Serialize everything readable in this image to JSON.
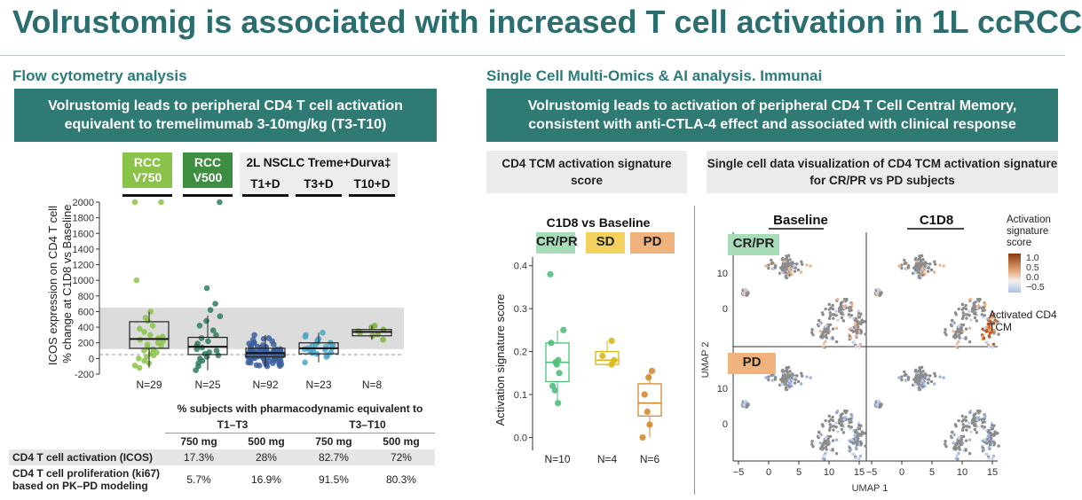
{
  "title": "Volrustomig is associated with increased T cell activation in 1L ccRCC",
  "left": {
    "section_title": "Flow cytometry analysis",
    "banner": "Volrustomig leads to peripheral CD4 T cell activation equivalent to tremelimumab 3-10mg/kg (T3-T10)",
    "groups": [
      {
        "label": "RCC V750",
        "color": "#8bc34a"
      },
      {
        "label": "RCC V500",
        "color": "#3e8e41"
      }
    ],
    "nsclc_header": "2L NSCLC Treme+Durva‡",
    "nsclc_groups": [
      "T1+D",
      "T3+D",
      "T10+D"
    ],
    "table": {
      "title": "% subjects with pharmacodynamic equivalent to",
      "spans": [
        "T1–T3",
        "T3–T10"
      ],
      "doses": [
        "750 mg",
        "500 mg",
        "750 mg",
        "500 mg"
      ],
      "rows": [
        {
          "label": "CD4 T cell activation (ICOS)",
          "values": [
            "17.3%",
            "28%",
            "82.7%",
            "72%"
          ]
        },
        {
          "label": "CD4 T cell proliferation (ki67) based on PK–PD modeling",
          "values": [
            "5.7%",
            "16.9%",
            "91.5%",
            "80.3%"
          ]
        }
      ]
    }
  },
  "right": {
    "section_title": "Single Cell Multi-Omics & AI analysis. Immunai",
    "banner": "Volrustomig leads to activation of peripheral CD4 T Cell Central Memory, consistent with anti-CTLA-4 effect and associated with clinical response",
    "box_a": "CD4 TCM activation signature score",
    "box_b": "Single cell data visualization of CD4 TCM activation signature for CR/PR vs PD subjects",
    "pills": [
      {
        "label": "CR/PR",
        "color": "#a6dcb8"
      },
      {
        "label": "SD",
        "color": "#f2d15c"
      },
      {
        "label": "PD",
        "color": "#f1b37d"
      }
    ],
    "umap": {
      "col_titles": [
        "Baseline",
        "C1D8"
      ],
      "row_labels": [
        "CR/PR",
        "PD"
      ],
      "xlabel": "UMAP 1",
      "ylabel": "UMAP 2",
      "x_ticks": [
        "−5",
        "0",
        "5",
        "10",
        "15"
      ],
      "y_ticks": [
        "10",
        "0"
      ],
      "legend_title": "Activation signature score",
      "legend_ticks": [
        "1.0",
        "0.5",
        "0.0",
        "−0.5"
      ],
      "annotation": "Activated CD4 TCM"
    }
  },
  "chart_data": [
    {
      "type": "scatter",
      "subtype": "box-strip",
      "title": "",
      "ylabel": "ICOS expression on CD4 T cells % change at C1D8 vs Baseline",
      "ylim": [
        -200,
        2000
      ],
      "y_ticks": [
        -200,
        0,
        200,
        400,
        600,
        800,
        1000,
        1200,
        1400,
        1600,
        1800,
        2000
      ],
      "categories": [
        "RCC V750",
        "RCC V500",
        "T1+D",
        "T3+D",
        "T10+D"
      ],
      "n_labels": [
        "N=29",
        "N=25",
        "N=92",
        "N=23",
        "N=8"
      ],
      "colors": [
        "#8bc34a",
        "#2e7d5b",
        "#3b5f9e",
        "#4aa7c9",
        "#7cb342"
      ],
      "shaded_band": [
        120,
        650
      ],
      "reference_line": 50,
      "boxes": [
        {
          "q1": 130,
          "median": 250,
          "q3": 470,
          "whisker_low": -120,
          "whisker_high": 600
        },
        {
          "q1": 50,
          "median": 150,
          "q3": 270,
          "whisker_low": -150,
          "whisker_high": 550
        },
        {
          "q1": 20,
          "median": 70,
          "q3": 130,
          "whisker_low": -100,
          "whisker_high": 300
        },
        {
          "q1": 60,
          "median": 130,
          "q3": 200,
          "whisker_low": -50,
          "whisker_high": 330
        },
        {
          "q1": 290,
          "median": 340,
          "q3": 370,
          "whisker_low": 240,
          "whisker_high": 420
        }
      ],
      "points": [
        [
          2000,
          2000,
          1000,
          600,
          520,
          480,
          420,
          380,
          340,
          300,
          280,
          260,
          240,
          220,
          200,
          180,
          160,
          140,
          120,
          100,
          80,
          60,
          40,
          20,
          0,
          -30,
          -60,
          -90,
          -120
        ],
        [
          2000,
          900,
          700,
          620,
          540,
          480,
          420,
          360,
          300,
          260,
          220,
          190,
          160,
          140,
          120,
          100,
          80,
          60,
          40,
          20,
          0,
          -30,
          -60,
          -100,
          -150
        ],
        [
          300,
          260,
          240,
          220,
          200,
          190,
          180,
          170,
          160,
          150,
          145,
          140,
          135,
          130,
          125,
          120,
          115,
          110,
          105,
          100,
          98,
          95,
          92,
          90,
          88,
          85,
          82,
          80,
          78,
          76,
          74,
          72,
          70,
          68,
          66,
          64,
          62,
          60,
          58,
          56,
          54,
          52,
          50,
          48,
          46,
          44,
          42,
          40,
          38,
          36,
          34,
          32,
          30,
          28,
          26,
          24,
          22,
          20,
          18,
          16,
          14,
          12,
          10,
          8,
          6,
          4,
          2,
          0,
          -5,
          -10,
          -15,
          -20,
          -25,
          -30,
          -35,
          -40,
          -45,
          -50,
          -55,
          -60,
          -65,
          -70,
          -75,
          -80,
          -85,
          -90,
          -95,
          -100,
          110,
          150,
          200,
          250
        ],
        [
          330,
          300,
          280,
          250,
          230,
          210,
          200,
          180,
          170,
          160,
          150,
          140,
          130,
          120,
          110,
          100,
          90,
          80,
          70,
          60,
          40,
          20,
          -50
        ],
        [
          420,
          400,
          370,
          350,
          330,
          310,
          290,
          240
        ]
      ]
    },
    {
      "type": "scatter",
      "subtype": "box-strip",
      "title": "C1D8 vs Baseline",
      "ylabel": "Activation signature score",
      "ylim": [
        -0.03,
        0.42
      ],
      "y_ticks": [
        0.0,
        0.1,
        0.2,
        0.3,
        0.4
      ],
      "categories": [
        "CR/PR",
        "SD",
        "PD"
      ],
      "n_labels": [
        "N=10",
        "N=4",
        "N=6"
      ],
      "colors": [
        "#4fbf7a",
        "#d9b61a",
        "#d6892f"
      ],
      "boxes": [
        {
          "q1": 0.13,
          "median": 0.175,
          "q3": 0.22,
          "whisker_low": 0.08,
          "whisker_high": 0.25
        },
        {
          "q1": 0.17,
          "median": 0.18,
          "q3": 0.2,
          "whisker_low": 0.165,
          "whisker_high": 0.225
        },
        {
          "q1": 0.05,
          "median": 0.08,
          "q3": 0.125,
          "whisker_low": 0.0,
          "whisker_high": 0.155
        }
      ],
      "points": [
        [
          0.38,
          0.25,
          0.22,
          0.18,
          0.175,
          0.17,
          0.15,
          0.12,
          0.11,
          0.08
        ],
        [
          0.225,
          0.19,
          0.18,
          0.17
        ],
        [
          0.155,
          0.14,
          0.1,
          0.06,
          0.03,
          0.0
        ]
      ]
    }
  ]
}
